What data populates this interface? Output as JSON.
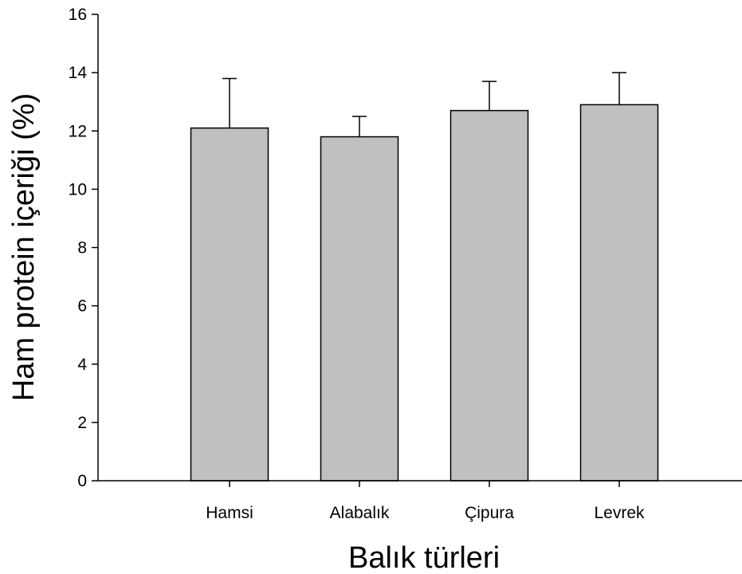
{
  "chart_data": {
    "type": "bar",
    "categories": [
      "Hamsi",
      "Alabalık",
      "Çipura",
      "Levrek"
    ],
    "values": [
      12.1,
      11.8,
      12.7,
      12.9
    ],
    "error_upper": [
      13.8,
      12.5,
      13.7,
      14.0
    ],
    "title": "",
    "xlabel": "Balık türleri",
    "ylabel": "Ham protein içeriği (%)",
    "ylim": [
      0,
      16
    ],
    "yticks": [
      0,
      2,
      4,
      6,
      8,
      10,
      12,
      14,
      16
    ],
    "grid": false,
    "legend": "none",
    "bar_color": "#c0c0c0",
    "edge_color": "#000000"
  }
}
